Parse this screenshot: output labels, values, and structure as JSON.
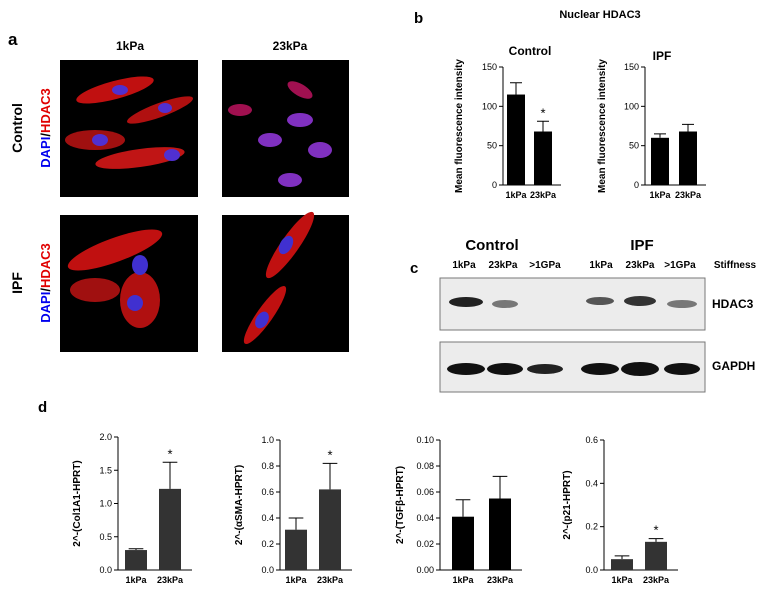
{
  "panel_a": {
    "label": "a",
    "columns": [
      "1kPa",
      "23kPa"
    ],
    "rows": [
      {
        "name": "Control",
        "stain": [
          "DAPI",
          "/",
          "HDAC3"
        ]
      },
      {
        "name": "IPF",
        "stain": [
          "DAPI",
          "/",
          "HDAC3"
        ]
      }
    ]
  },
  "panel_b": {
    "label": "b",
    "title": "Nuclear HDAC3"
  },
  "panel_c": {
    "label": "c",
    "groups": [
      "Control",
      "IPF"
    ],
    "lanes": [
      "1kPa",
      "23kPa",
      ">1GPa",
      "1kPa",
      "23kPa",
      ">1GPa"
    ],
    "axis_label": "Stiffness",
    "bands": [
      "HDAC3",
      "GAPDH"
    ]
  },
  "panel_d": {
    "label": "d"
  },
  "chart_data": [
    {
      "type": "bar",
      "title": "Control",
      "y_label": "Mean fluorescence intensity",
      "categories": [
        "1kPa",
        "23kPa"
      ],
      "values": [
        115,
        68
      ],
      "errors": [
        15,
        13
      ],
      "color": "#000000",
      "ylim": [
        0,
        150
      ],
      "yticks": [
        0,
        50,
        100,
        150
      ],
      "annotations": [
        {
          "category": "23kPa",
          "text": "*"
        }
      ]
    },
    {
      "type": "bar",
      "title": "IPF",
      "y_label": "Mean fluorescence intensity",
      "categories": [
        "1kPa",
        "23kPa"
      ],
      "values": [
        60,
        68
      ],
      "errors": [
        5,
        9
      ],
      "color": "#000000",
      "ylim": [
        0,
        150
      ],
      "yticks": [
        0,
        50,
        100,
        150
      ]
    },
    {
      "type": "bar",
      "y_label": "2^-(Col1A1-HPRT)",
      "categories": [
        "1kPa",
        "23kPa"
      ],
      "values": [
        0.3,
        1.22
      ],
      "errors": [
        0.02,
        0.4
      ],
      "color": "#333333",
      "ylim": [
        0,
        2
      ],
      "yticks": [
        {
          "value": 0,
          "label": "0.0"
        },
        0.5,
        {
          "value": 1,
          "label": "1.0"
        },
        1.5,
        {
          "value": 2,
          "label": "2.0"
        }
      ],
      "annotations": [
        {
          "category": "23kPa",
          "text": "*"
        }
      ]
    },
    {
      "type": "bar",
      "y_label": "2^-(αSMA-HPRT)",
      "categories": [
        "1kPa",
        "23kPa"
      ],
      "values": [
        0.31,
        0.62
      ],
      "errors": [
        0.09,
        0.2
      ],
      "color": "#333333",
      "ylim": [
        0,
        1
      ],
      "yticks": [
        {
          "value": 0,
          "label": "0.0"
        },
        0.2,
        0.4,
        0.6,
        0.8,
        {
          "value": 1,
          "label": "1.0"
        }
      ],
      "annotations": [
        {
          "category": "23kPa",
          "text": "*"
        }
      ]
    },
    {
      "type": "bar",
      "y_label": "2^-(TGFβ-HPRT)",
      "categories": [
        "1kPa",
        "23kPa"
      ],
      "values": [
        0.041,
        0.055
      ],
      "errors": [
        0.013,
        0.017
      ],
      "color": "#000000",
      "ylim": [
        0,
        0.1
      ],
      "yticks": [
        {
          "value": 0,
          "label": "0.00"
        },
        0.02,
        0.04,
        0.06,
        0.08,
        {
          "value": 0.1,
          "label": "0.10"
        }
      ]
    },
    {
      "type": "bar",
      "y_label": "2^-(p21-HPRT)",
      "categories": [
        "1kPa",
        "23kPa"
      ],
      "values": [
        0.05,
        0.13
      ],
      "errors": [
        0.015,
        0.015
      ],
      "color": "#333333",
      "ylim": [
        0,
        0.6
      ],
      "yticks": [
        {
          "value": 0,
          "label": "0.0"
        },
        0.2,
        0.4,
        0.6
      ],
      "annotations": [
        {
          "category": "23kPa",
          "text": "*"
        }
      ]
    }
  ]
}
